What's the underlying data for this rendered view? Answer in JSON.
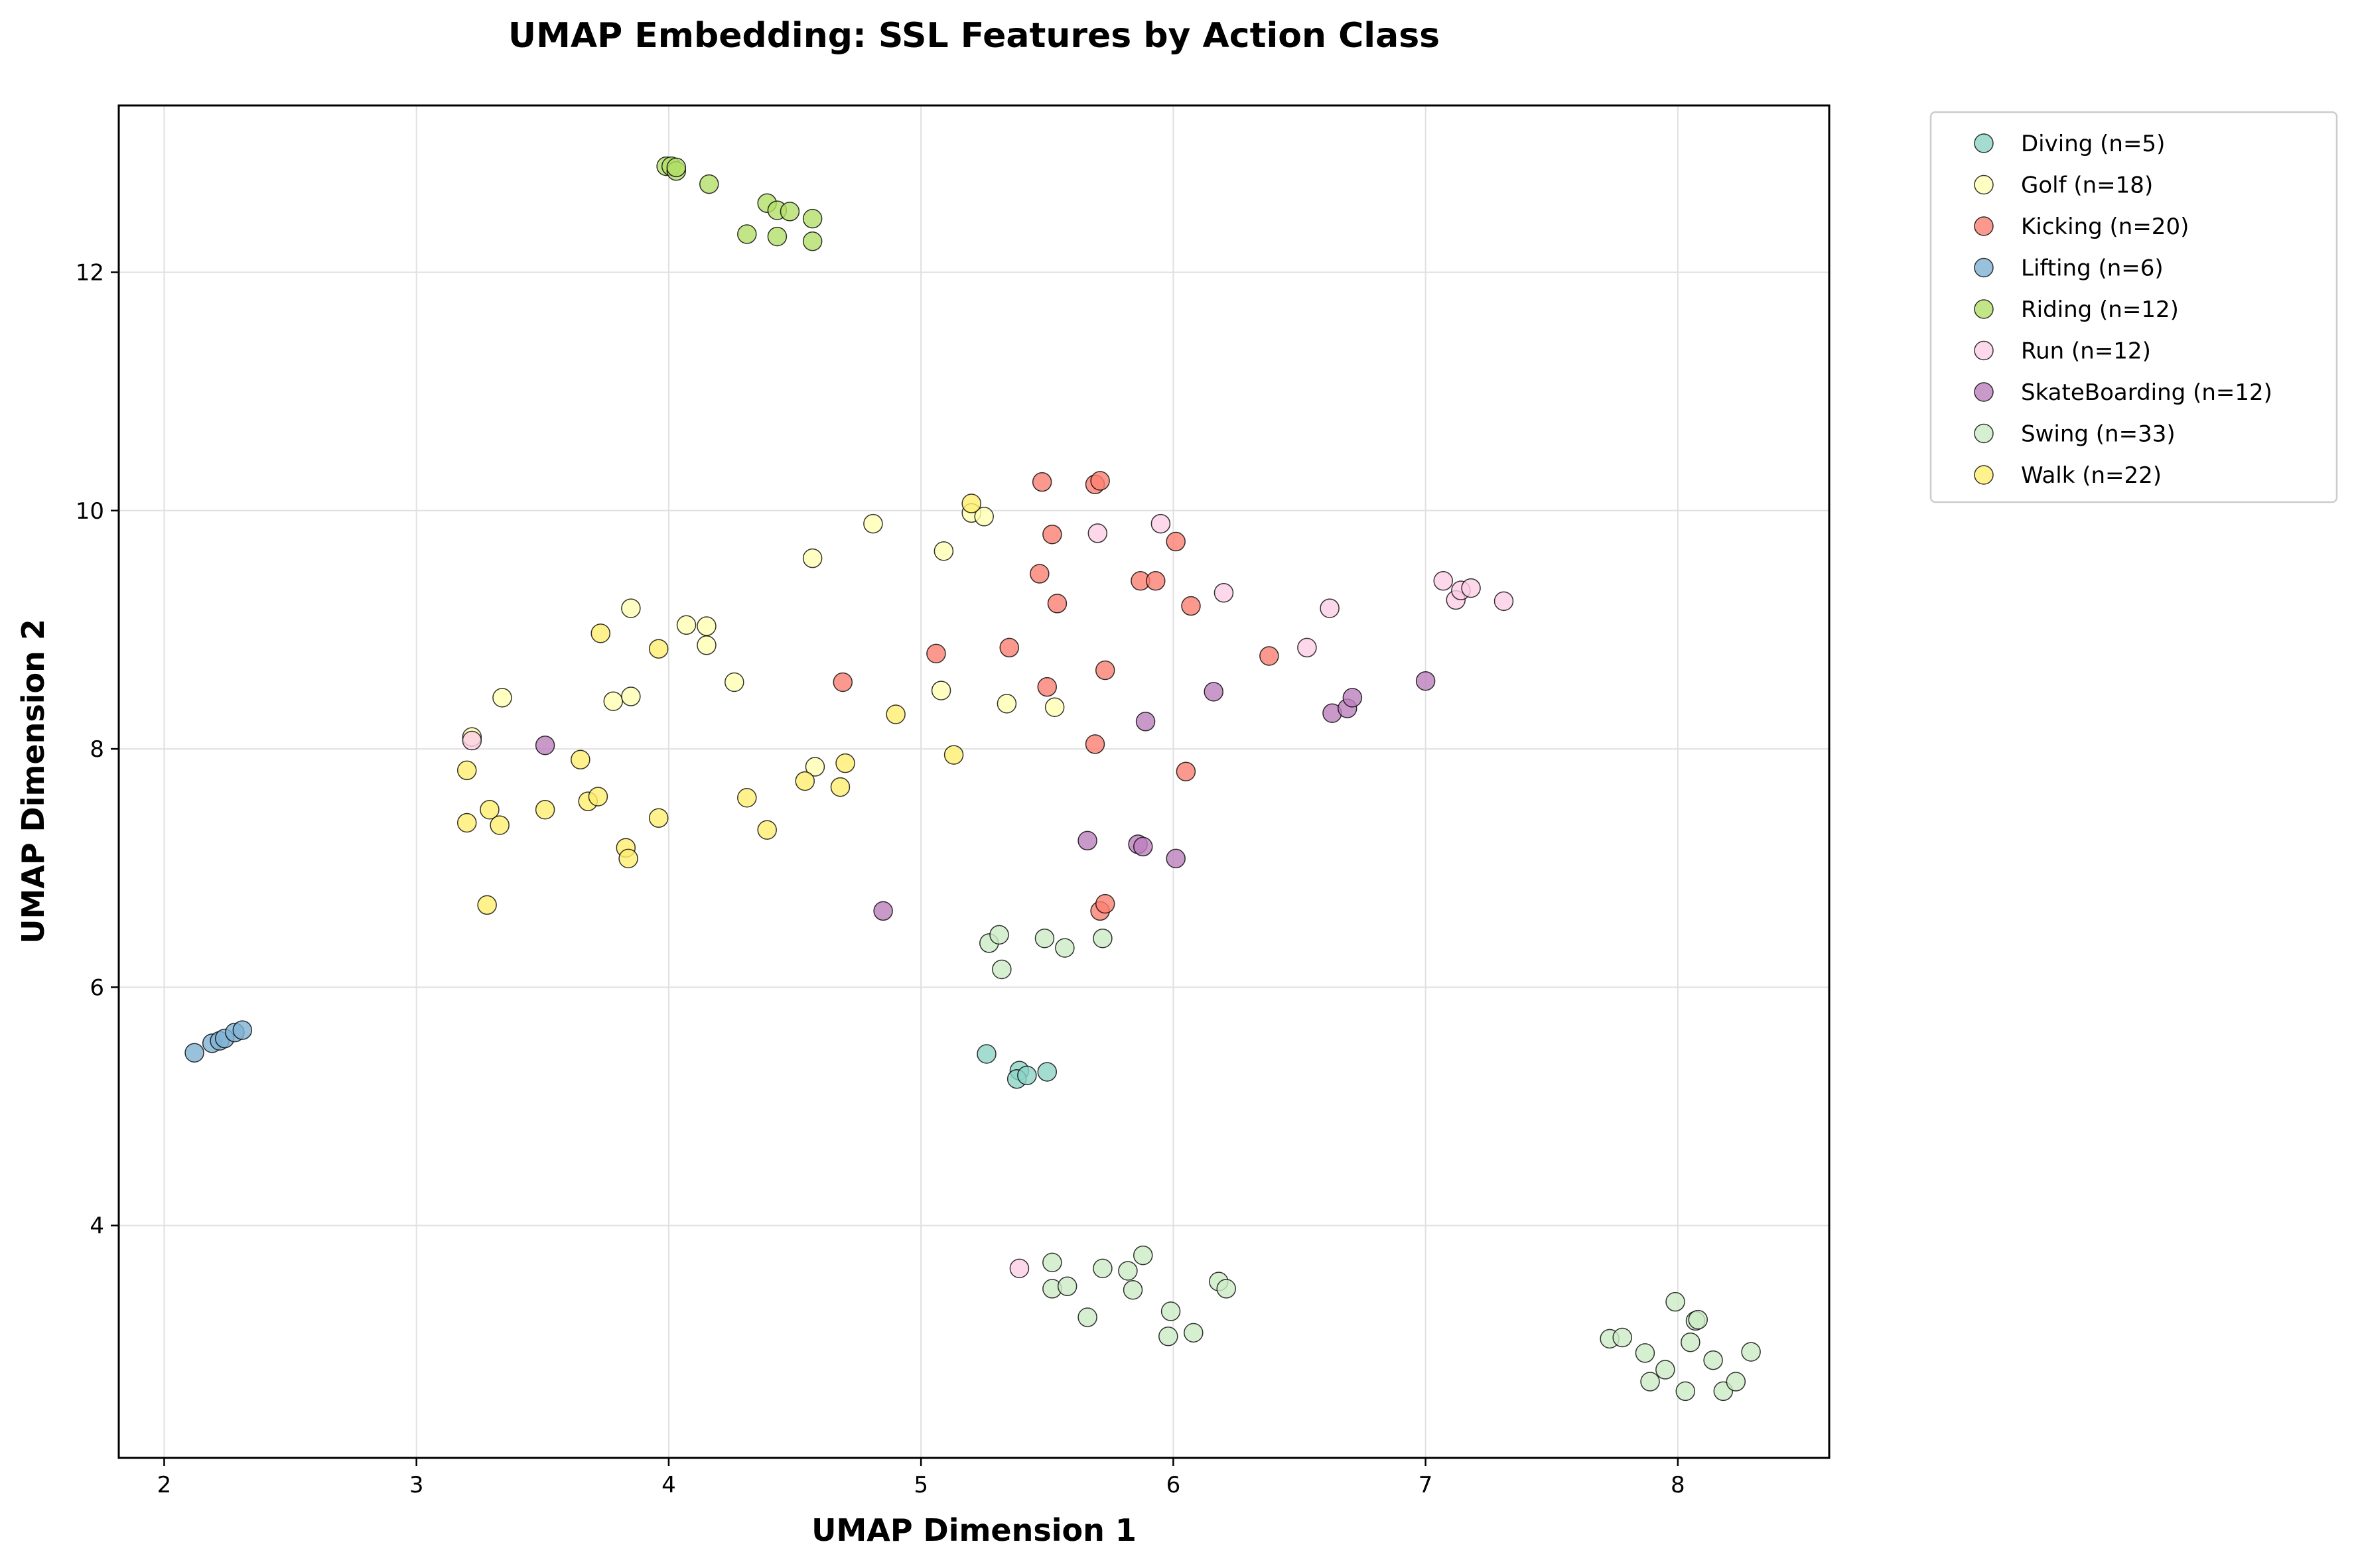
{
  "chart_data": {
    "type": "scatter",
    "title": "UMAP Embedding: SSL Features by Action Class",
    "xlabel": "UMAP Dimension 1",
    "ylabel": "UMAP Dimension 2",
    "xlim": [
      1.82,
      8.6
    ],
    "ylim": [
      2.05,
      13.4
    ],
    "xticks": [
      2,
      3,
      4,
      5,
      6,
      7,
      8
    ],
    "yticks": [
      4,
      6,
      8,
      10,
      12
    ],
    "grid": true,
    "legend_position": "outside-right-top",
    "series": [
      {
        "name": "Diving (n=5)",
        "color": "#8dd3c7",
        "points": [
          [
            5.26,
            5.44
          ],
          [
            5.39,
            5.3
          ],
          [
            5.38,
            5.23
          ],
          [
            5.42,
            5.26
          ],
          [
            5.5,
            5.29
          ]
        ]
      },
      {
        "name": "Golf (n=18)",
        "color": "#ffffb3",
        "points": [
          [
            3.22,
            8.1
          ],
          [
            3.34,
            8.43
          ],
          [
            3.78,
            8.4
          ],
          [
            3.85,
            8.44
          ],
          [
            3.85,
            9.18
          ],
          [
            4.07,
            9.04
          ],
          [
            4.15,
            8.87
          ],
          [
            4.15,
            9.03
          ],
          [
            4.26,
            8.56
          ],
          [
            4.57,
            9.6
          ],
          [
            4.58,
            7.85
          ],
          [
            4.81,
            9.89
          ],
          [
            5.08,
            8.49
          ],
          [
            5.09,
            9.66
          ],
          [
            5.2,
            9.98
          ],
          [
            5.25,
            9.95
          ],
          [
            5.34,
            8.38
          ],
          [
            5.53,
            8.35
          ]
        ]
      },
      {
        "name": "Kicking (n=20)",
        "color": "#fb8072",
        "points": [
          [
            4.69,
            8.56
          ],
          [
            5.06,
            8.8
          ],
          [
            5.35,
            8.85
          ],
          [
            5.47,
            9.47
          ],
          [
            5.48,
            10.24
          ],
          [
            5.5,
            8.52
          ],
          [
            5.52,
            9.8
          ],
          [
            5.54,
            9.22
          ],
          [
            5.69,
            8.04
          ],
          [
            5.69,
            10.22
          ],
          [
            5.71,
            10.25
          ],
          [
            5.71,
            6.64
          ],
          [
            5.73,
            6.7
          ],
          [
            5.73,
            8.66
          ],
          [
            5.87,
            9.41
          ],
          [
            5.93,
            9.41
          ],
          [
            6.01,
            9.74
          ],
          [
            6.05,
            7.81
          ],
          [
            6.07,
            9.2
          ],
          [
            6.38,
            8.78
          ]
        ]
      },
      {
        "name": "Lifting (n=6)",
        "color": "#80b1d3",
        "points": [
          [
            2.12,
            5.45
          ],
          [
            2.19,
            5.53
          ],
          [
            2.22,
            5.55
          ],
          [
            2.24,
            5.57
          ],
          [
            2.28,
            5.62
          ],
          [
            2.31,
            5.64
          ]
        ]
      },
      {
        "name": "Riding (n=12)",
        "color": "#b3de69",
        "points": [
          [
            3.99,
            12.89
          ],
          [
            4.01,
            12.89
          ],
          [
            4.03,
            12.85
          ],
          [
            4.16,
            12.74
          ],
          [
            4.31,
            12.32
          ],
          [
            4.39,
            12.58
          ],
          [
            4.43,
            12.3
          ],
          [
            4.43,
            12.52
          ],
          [
            4.48,
            12.51
          ],
          [
            4.57,
            12.45
          ],
          [
            4.57,
            12.26
          ],
          [
            4.03,
            12.88
          ]
        ]
      },
      {
        "name": "Run (n=12)",
        "color": "#fccde5",
        "points": [
          [
            3.22,
            8.07
          ],
          [
            5.39,
            3.64
          ],
          [
            5.7,
            9.81
          ],
          [
            5.95,
            9.89
          ],
          [
            6.2,
            9.31
          ],
          [
            6.53,
            8.85
          ],
          [
            6.62,
            9.18
          ],
          [
            7.07,
            9.41
          ],
          [
            7.12,
            9.25
          ],
          [
            7.14,
            9.33
          ],
          [
            7.18,
            9.35
          ],
          [
            7.31,
            9.24
          ]
        ]
      },
      {
        "name": "SkateBoarding (n=12)",
        "color": "#bc80bd",
        "points": [
          [
            3.51,
            8.03
          ],
          [
            4.85,
            6.64
          ],
          [
            5.66,
            7.23
          ],
          [
            5.86,
            7.2
          ],
          [
            5.88,
            7.18
          ],
          [
            5.89,
            8.23
          ],
          [
            6.01,
            7.08
          ],
          [
            6.16,
            8.48
          ],
          [
            6.63,
            8.3
          ],
          [
            6.69,
            8.34
          ],
          [
            6.71,
            8.43
          ],
          [
            7.0,
            8.57
          ]
        ]
      },
      {
        "name": "Swing (n=33)",
        "color": "#ccebc5",
        "points": [
          [
            5.27,
            6.37
          ],
          [
            5.31,
            6.44
          ],
          [
            5.32,
            6.15
          ],
          [
            5.49,
            6.41
          ],
          [
            5.57,
            6.33
          ],
          [
            5.72,
            6.41
          ],
          [
            5.52,
            3.69
          ],
          [
            5.52,
            3.47
          ],
          [
            5.58,
            3.49
          ],
          [
            5.66,
            3.23
          ],
          [
            5.72,
            3.64
          ],
          [
            5.82,
            3.62
          ],
          [
            5.84,
            3.46
          ],
          [
            5.88,
            3.75
          ],
          [
            5.98,
            3.07
          ],
          [
            5.99,
            3.28
          ],
          [
            6.08,
            3.1
          ],
          [
            6.18,
            3.53
          ],
          [
            6.21,
            3.47
          ],
          [
            7.73,
            3.05
          ],
          [
            7.78,
            3.06
          ],
          [
            7.87,
            2.93
          ],
          [
            7.89,
            2.69
          ],
          [
            7.95,
            2.79
          ],
          [
            7.99,
            3.36
          ],
          [
            8.03,
            2.61
          ],
          [
            8.05,
            3.02
          ],
          [
            8.07,
            3.2
          ],
          [
            8.08,
            3.21
          ],
          [
            8.14,
            2.87
          ],
          [
            8.18,
            2.61
          ],
          [
            8.23,
            2.69
          ],
          [
            8.29,
            2.94
          ]
        ]
      },
      {
        "name": "Walk (n=22)",
        "color": "#ffed6f",
        "points": [
          [
            3.2,
            7.82
          ],
          [
            3.2,
            7.38
          ],
          [
            3.28,
            6.69
          ],
          [
            3.29,
            7.49
          ],
          [
            3.33,
            7.36
          ],
          [
            3.51,
            7.49
          ],
          [
            3.65,
            7.91
          ],
          [
            3.68,
            7.56
          ],
          [
            3.72,
            7.6
          ],
          [
            3.73,
            8.97
          ],
          [
            3.83,
            7.17
          ],
          [
            3.84,
            7.08
          ],
          [
            3.96,
            8.84
          ],
          [
            3.96,
            7.42
          ],
          [
            4.31,
            7.59
          ],
          [
            4.39,
            7.32
          ],
          [
            4.54,
            7.73
          ],
          [
            4.68,
            7.68
          ],
          [
            4.7,
            7.88
          ],
          [
            4.9,
            8.29
          ],
          [
            5.13,
            7.95
          ],
          [
            5.2,
            10.06
          ]
        ]
      }
    ]
  }
}
